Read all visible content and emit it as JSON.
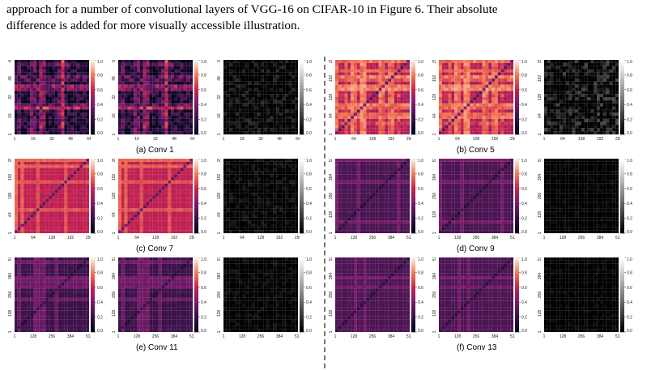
{
  "text": {
    "intro_line1": "approach for a number of convolutional layers of VGG-16 on CIFAR-10 in Figure 6. Their absolute",
    "intro_line2": "difference is added for more visually accessible illustration."
  },
  "colorbar_ticks": [
    "1.0",
    "0.8",
    "0.6",
    "0.4",
    "0.2",
    "0.0"
  ],
  "panels": [
    {
      "caption": "(a) Conv 1",
      "ticks": [
        "1",
        "16",
        "32",
        "48",
        "64"
      ],
      "base": 0.1,
      "contrast": 0.75,
      "lines": 8,
      "diff": 0.06
    },
    {
      "caption": "(b) Conv 5",
      "ticks": [
        "1",
        "64",
        "128",
        "192",
        "256"
      ],
      "base": 0.55,
      "contrast": 0.3,
      "lines": 14,
      "diff": 0.1
    },
    {
      "caption": "(c) Conv 7",
      "ticks": [
        "1",
        "64",
        "128",
        "192",
        "256"
      ],
      "base": 0.58,
      "contrast": 0.12,
      "lines": 4,
      "diff": 0.04
    },
    {
      "caption": "(d) Conv 9",
      "ticks": [
        "1",
        "128",
        "256",
        "384",
        "512"
      ],
      "base": 0.26,
      "contrast": 0.06,
      "lines": 3,
      "diff": 0.02
    },
    {
      "caption": "(e) Conv 11",
      "ticks": [
        "1",
        "128",
        "256",
        "384",
        "512"
      ],
      "base": 0.22,
      "contrast": 0.1,
      "lines": 6,
      "diff": 0.03
    },
    {
      "caption": "(f) Conv 13",
      "ticks": [
        "1",
        "128",
        "256",
        "384",
        "512"
      ],
      "base": 0.27,
      "contrast": 0.07,
      "lines": 2,
      "diff": 0.02
    }
  ]
}
